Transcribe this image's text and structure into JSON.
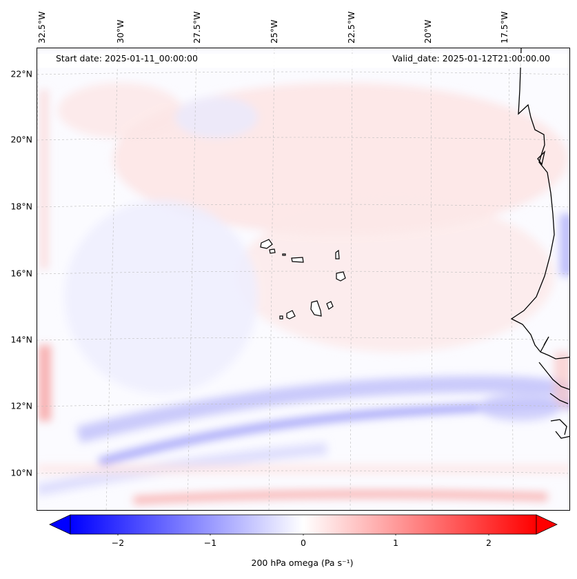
{
  "map": {
    "start_date": "Start date: 2025-01-11_00:00:00",
    "valid_date": "Valid_date: 2025-01-12T21:00:00.00",
    "lat_labels": [
      "22°N",
      "20°N",
      "18°N",
      "16°N",
      "14°N",
      "12°N",
      "10°N"
    ],
    "lon_labels": [
      "32.5°W",
      "30°W",
      "27.5°W",
      "25°W",
      "22.5°W",
      "20°W",
      "17.5°W"
    ],
    "region": "Cape Verde / West African coast"
  },
  "colorbar": {
    "ticks": [
      "−2",
      "−1",
      "0",
      "1",
      "2"
    ],
    "tick_values": [
      -2,
      -1,
      0,
      1,
      2
    ],
    "range": [
      -2.5,
      2.5
    ],
    "label": "200 hPa omega (Pa s⁻¹)",
    "colormap": "bwr",
    "low_color": "#0000ff",
    "mid_color": "#ffffff",
    "high_color": "#ff0000"
  }
}
